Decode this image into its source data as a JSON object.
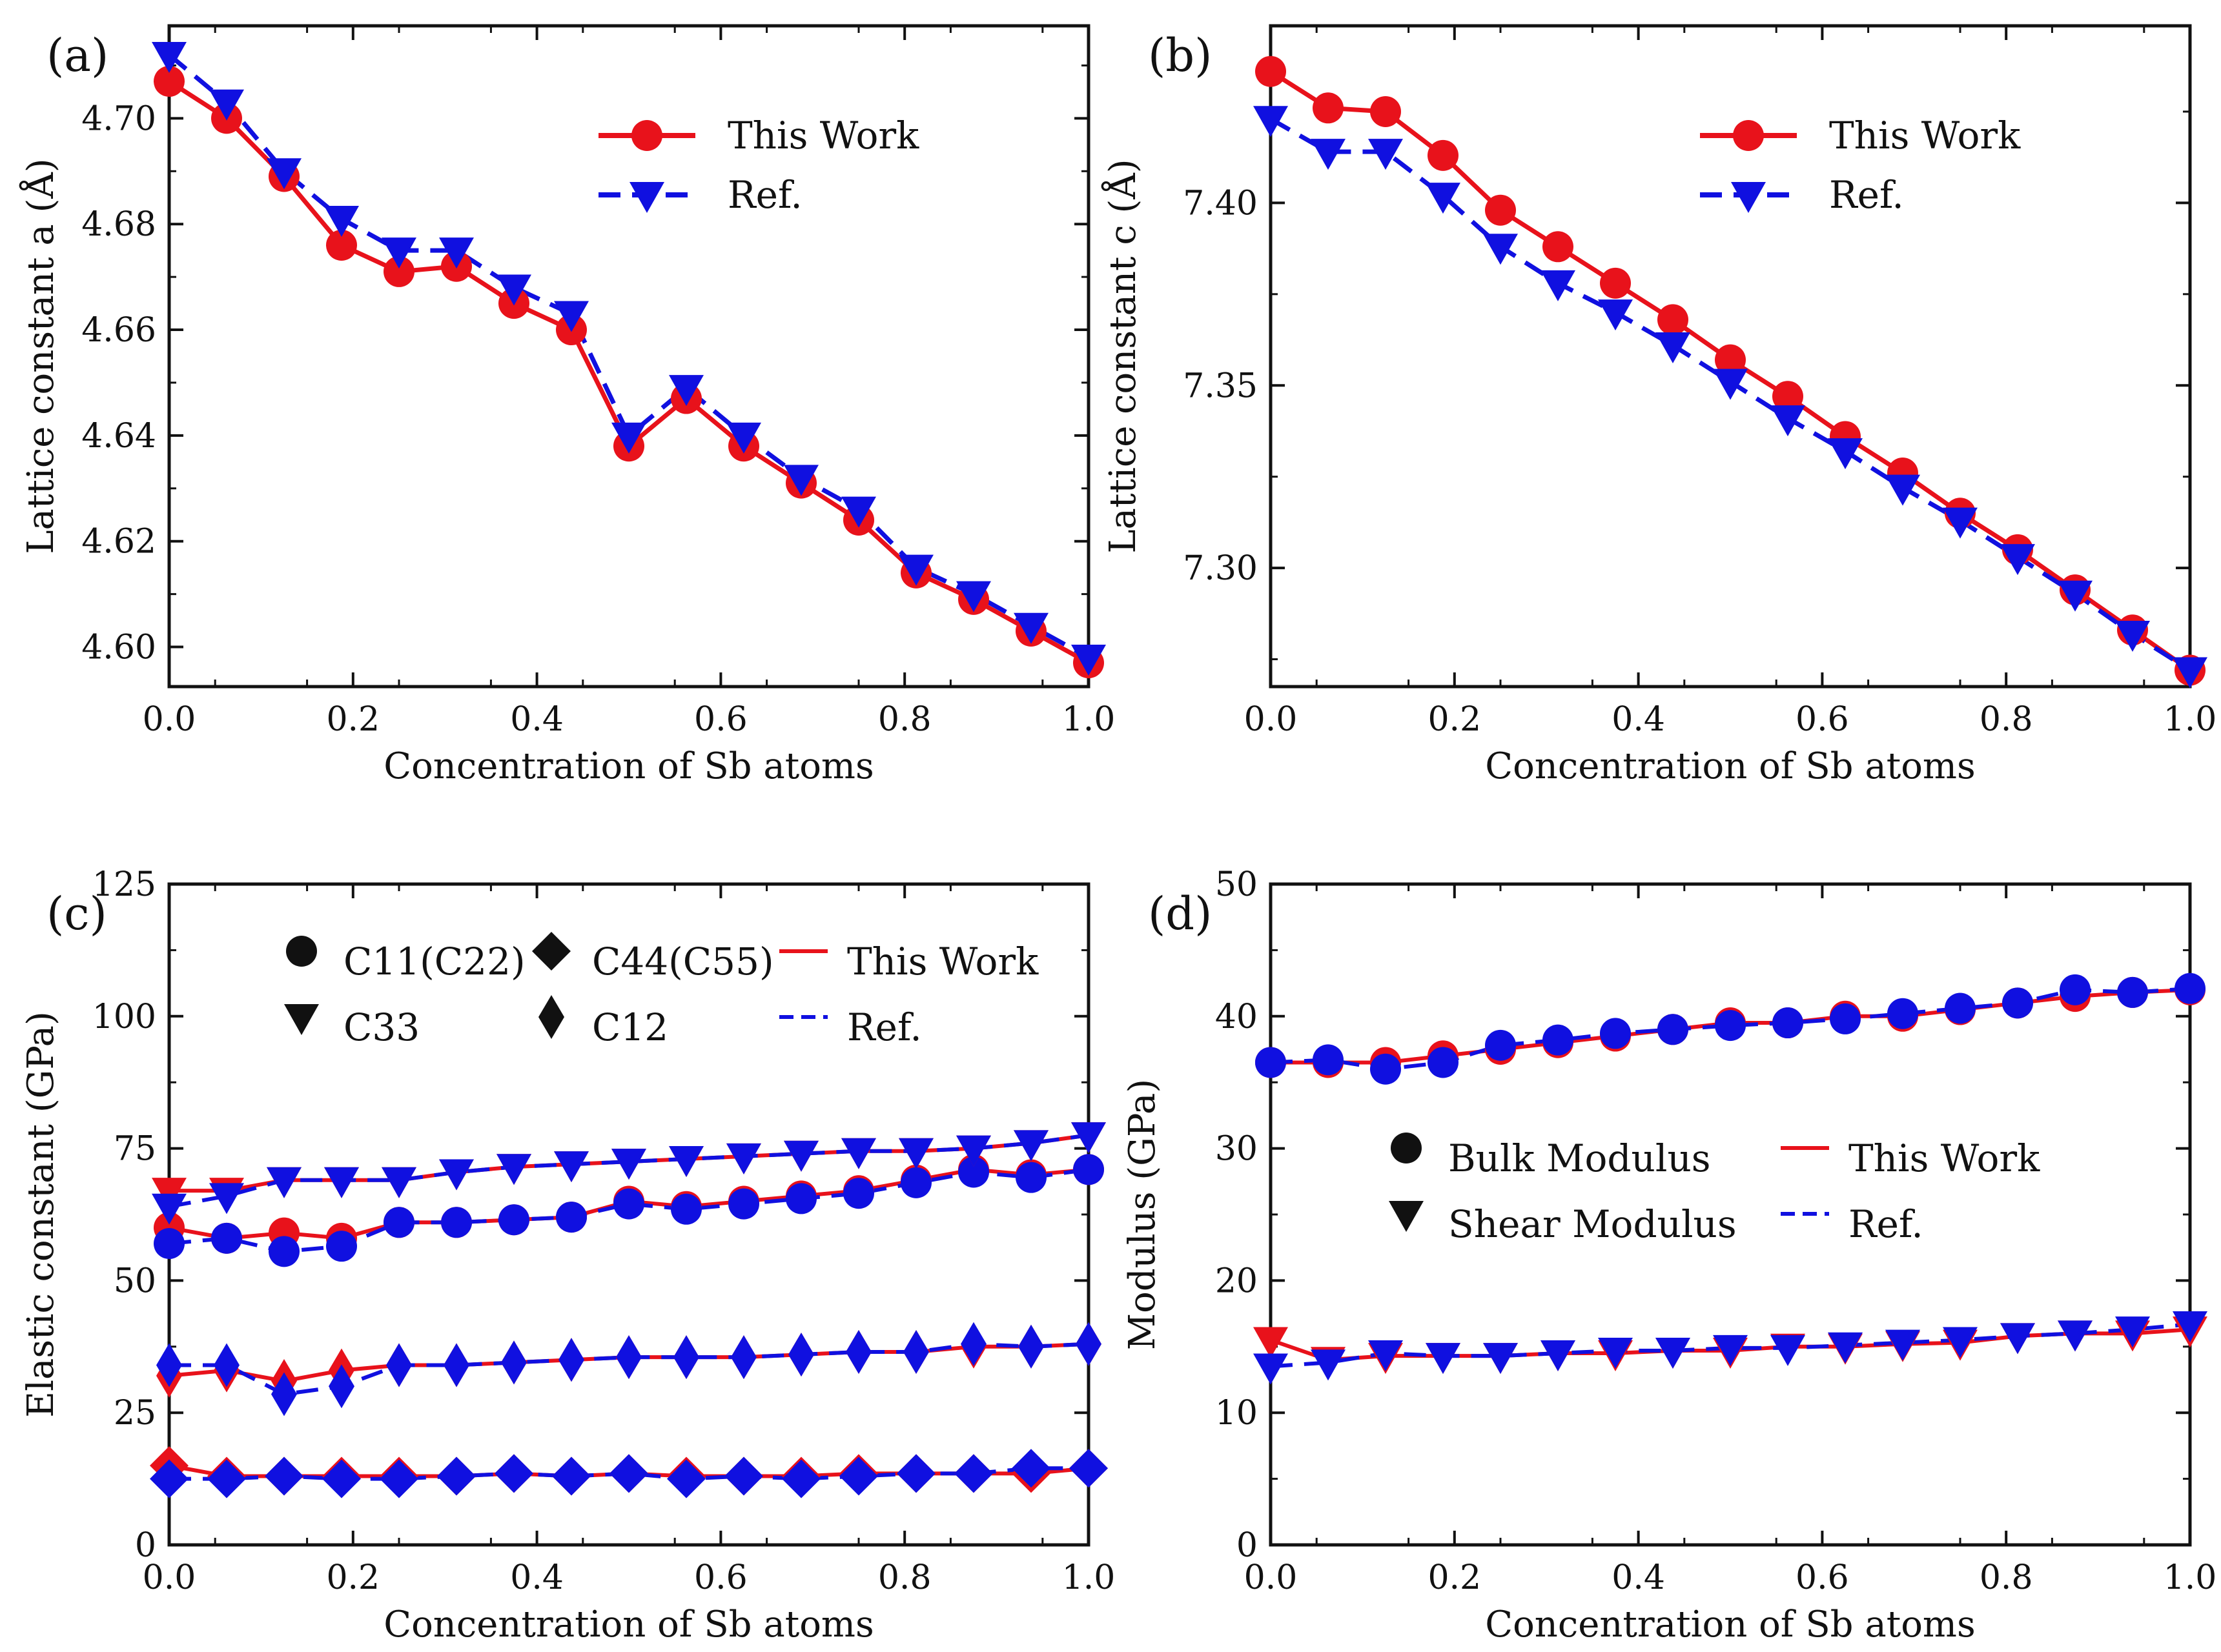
{
  "colors": {
    "this_work": "#e8121b",
    "ref": "#1010e0",
    "axis": "#111111",
    "marker_black": "#111111"
  },
  "legend_labels": {
    "this_work": "This Work",
    "ref": "Ref."
  },
  "chart_data": [
    {
      "panel_label": "(a)",
      "type": "line",
      "xlabel": "Concentration of Sb atoms",
      "ylabel": "Lattice constant a (Å)",
      "xlim": [
        0,
        1
      ],
      "ylim": [
        4.5925,
        4.7175
      ],
      "xticks": [
        "0.0",
        "0.2",
        "0.4",
        "0.6",
        "0.8",
        "1.0"
      ],
      "yticks": [
        "4.60",
        "4.62",
        "4.64",
        "4.66",
        "4.68",
        "4.70"
      ],
      "ytick_values": [
        4.6,
        4.62,
        4.64,
        4.66,
        4.68,
        4.7
      ],
      "legend": {
        "position": "upper-right",
        "entries": [
          {
            "label": "This Work",
            "style": "this_work",
            "marker": "circle"
          },
          {
            "label": "Ref.",
            "style": "ref",
            "marker": "triangle-down"
          }
        ]
      },
      "x": [
        0,
        0.0625,
        0.125,
        0.1875,
        0.25,
        0.3125,
        0.375,
        0.4375,
        0.5,
        0.5625,
        0.625,
        0.6875,
        0.75,
        0.8125,
        0.875,
        0.9375,
        1.0
      ],
      "series": [
        {
          "name": "This Work",
          "style": "this_work",
          "marker": "circle",
          "values": [
            4.707,
            4.7,
            4.689,
            4.676,
            4.671,
            4.672,
            4.665,
            4.66,
            4.638,
            4.647,
            4.638,
            4.631,
            4.624,
            4.614,
            4.609,
            4.603,
            4.597
          ]
        },
        {
          "name": "Ref.",
          "style": "ref",
          "marker": "triangle-down",
          "values": [
            4.712,
            4.703,
            4.69,
            4.681,
            4.675,
            4.675,
            4.668,
            4.663,
            4.64,
            4.649,
            4.64,
            4.632,
            4.626,
            4.615,
            4.61,
            4.604,
            4.598
          ]
        }
      ]
    },
    {
      "panel_label": "(b)",
      "type": "line",
      "xlabel": "Concentration of Sb atoms",
      "ylabel": "Lattice constant c (Å)",
      "xlim": [
        0,
        1
      ],
      "ylim": [
        7.2675,
        7.4485
      ],
      "xticks": [
        "0.0",
        "0.2",
        "0.4",
        "0.6",
        "0.8",
        "1.0"
      ],
      "yticks": [
        "7.30",
        "7.35",
        "7.40"
      ],
      "ytick_values": [
        7.3,
        7.35,
        7.4
      ],
      "legend": {
        "position": "upper-right",
        "entries": [
          {
            "label": "This Work",
            "style": "this_work",
            "marker": "circle"
          },
          {
            "label": "Ref.",
            "style": "ref",
            "marker": "triangle-down"
          }
        ]
      },
      "x": [
        0,
        0.0625,
        0.125,
        0.1875,
        0.25,
        0.3125,
        0.375,
        0.4375,
        0.5,
        0.5625,
        0.625,
        0.6875,
        0.75,
        0.8125,
        0.875,
        0.9375,
        1.0
      ],
      "series": [
        {
          "name": "This Work",
          "style": "this_work",
          "marker": "circle",
          "values": [
            7.436,
            7.426,
            7.425,
            7.413,
            7.398,
            7.388,
            7.378,
            7.368,
            7.357,
            7.347,
            7.336,
            7.326,
            7.315,
            7.305,
            7.294,
            7.283,
            7.272
          ]
        },
        {
          "name": "Ref.",
          "style": "ref",
          "marker": "triangle-down",
          "values": [
            7.423,
            7.414,
            7.414,
            7.402,
            7.388,
            7.378,
            7.37,
            7.361,
            7.351,
            7.341,
            7.332,
            7.322,
            7.313,
            7.303,
            7.293,
            7.282,
            7.272
          ]
        }
      ]
    },
    {
      "panel_label": "(c)",
      "type": "line",
      "xlabel": "Concentration of Sb atoms",
      "ylabel": "Elastic constant (GPa)",
      "xlim": [
        0,
        1
      ],
      "ylim": [
        0,
        125
      ],
      "xticks": [
        "0.0",
        "0.2",
        "0.4",
        "0.6",
        "0.8",
        "1.0"
      ],
      "yticks": [
        "0",
        "25",
        "50",
        "75",
        "100",
        "125"
      ],
      "ytick_values": [
        0,
        25,
        50,
        75,
        100,
        125
      ],
      "legend": {
        "position": "top",
        "entries": [
          {
            "label": "C11(C22)",
            "marker": "circle"
          },
          {
            "label": "C44(C55)",
            "marker": "diamond"
          },
          {
            "label": "This Work",
            "style": "this_work",
            "marker": "line-solid"
          },
          {
            "label": "C33",
            "marker": "triangle-down"
          },
          {
            "label": "C12",
            "marker": "thin-diamond"
          },
          {
            "label": "Ref.",
            "style": "ref",
            "marker": "line-dashed"
          }
        ]
      },
      "x": [
        0,
        0.0625,
        0.125,
        0.1875,
        0.25,
        0.3125,
        0.375,
        0.4375,
        0.5,
        0.5625,
        0.625,
        0.6875,
        0.75,
        0.8125,
        0.875,
        0.9375,
        1.0
      ],
      "series": [
        {
          "group": "C11(C22)",
          "source": "This Work",
          "marker": "circle",
          "values": [
            60,
            58,
            59,
            58,
            61,
            61,
            61.5,
            62,
            65,
            64,
            65,
            66,
            67,
            69,
            71,
            70,
            71
          ]
        },
        {
          "group": "C11(C22)",
          "source": "Ref.",
          "marker": "circle",
          "values": [
            57,
            58,
            55.5,
            56.5,
            61,
            61,
            61.5,
            62,
            64.5,
            63.5,
            64.5,
            65.5,
            66.5,
            68.5,
            70.5,
            69.5,
            71
          ]
        },
        {
          "group": "C33",
          "source": "This Work",
          "marker": "triangle-down",
          "values": [
            67,
            67,
            69,
            69,
            69,
            70.5,
            71.5,
            72,
            72.5,
            73,
            73.5,
            74,
            74.5,
            74.5,
            75,
            76,
            77.5
          ]
        },
        {
          "group": "C33",
          "source": "Ref.",
          "marker": "triangle-down",
          "values": [
            64,
            66,
            69,
            69,
            69,
            70.5,
            71.5,
            72,
            72.5,
            73,
            73.5,
            74,
            74.5,
            74.5,
            75,
            76,
            77.5
          ]
        },
        {
          "group": "C44(C55)",
          "source": "This Work",
          "marker": "diamond",
          "values": [
            15,
            13,
            13,
            13,
            13,
            13,
            13.5,
            13,
            13.5,
            13,
            13,
            13,
            13.5,
            13.5,
            13.5,
            13.5,
            14.5
          ]
        },
        {
          "group": "C44(C55)",
          "source": "Ref.",
          "marker": "diamond",
          "values": [
            12.5,
            12.5,
            13,
            12.5,
            12.5,
            13,
            13.5,
            13,
            13.5,
            12.5,
            13,
            12.5,
            13,
            13.5,
            13.5,
            14.5,
            14.5
          ]
        },
        {
          "group": "C12",
          "source": "This Work",
          "marker": "thin-diamond",
          "values": [
            32,
            33,
            31,
            33,
            34,
            34,
            34.5,
            35,
            35.5,
            35.5,
            35.5,
            36,
            36.5,
            36.5,
            37.5,
            37.5,
            38
          ]
        },
        {
          "group": "C12",
          "source": "Ref.",
          "marker": "thin-diamond",
          "values": [
            34,
            34,
            28.5,
            30,
            34,
            34,
            34.5,
            35,
            35.5,
            35.5,
            35.5,
            36,
            36.5,
            36.5,
            38,
            37.5,
            38
          ]
        }
      ]
    },
    {
      "panel_label": "(d)",
      "type": "line",
      "xlabel": "Concentration of Sb atoms",
      "ylabel": "Modulus (GPa)",
      "xlim": [
        0,
        1
      ],
      "ylim": [
        0,
        50
      ],
      "xticks": [
        "0.0",
        "0.2",
        "0.4",
        "0.6",
        "0.8",
        "1.0"
      ],
      "yticks": [
        "0",
        "10",
        "20",
        "30",
        "40",
        "50"
      ],
      "ytick_values": [
        0,
        10,
        20,
        30,
        40,
        50
      ],
      "legend": {
        "position": "center",
        "entries": [
          {
            "label": "Bulk Modulus",
            "marker": "circle"
          },
          {
            "label": "This Work",
            "style": "this_work",
            "marker": "line-solid"
          },
          {
            "label": "Shear Modulus",
            "marker": "triangle-down"
          },
          {
            "label": "Ref.",
            "style": "ref",
            "marker": "line-dashed"
          }
        ]
      },
      "x": [
        0,
        0.0625,
        0.125,
        0.1875,
        0.25,
        0.3125,
        0.375,
        0.4375,
        0.5,
        0.5625,
        0.625,
        0.6875,
        0.75,
        0.8125,
        0.875,
        0.9375,
        1.0
      ],
      "series": [
        {
          "group": "Bulk Modulus",
          "source": "This Work",
          "marker": "circle",
          "values": [
            36.5,
            36.5,
            36.5,
            37,
            37.5,
            38,
            38.5,
            39,
            39.5,
            39.5,
            40,
            40,
            40.5,
            41,
            41.5,
            41.8,
            42
          ]
        },
        {
          "group": "Bulk Modulus",
          "source": "Ref.",
          "marker": "circle",
          "values": [
            36.5,
            36.7,
            36,
            36.5,
            37.8,
            38.2,
            38.7,
            39,
            39.3,
            39.5,
            39.8,
            40.2,
            40.6,
            41,
            42,
            41.8,
            42.1
          ]
        },
        {
          "group": "Shear Modulus",
          "source": "This Work",
          "marker": "triangle-down",
          "values": [
            15.5,
            14,
            14.3,
            14.3,
            14.3,
            14.5,
            14.5,
            14.7,
            14.7,
            15,
            15,
            15.2,
            15.3,
            15.8,
            16,
            16,
            16.3
          ]
        },
        {
          "group": "Shear Modulus",
          "source": "Ref.",
          "marker": "triangle-down",
          "values": [
            13.5,
            13.8,
            14.5,
            14.3,
            14.3,
            14.5,
            14.7,
            14.7,
            14.9,
            14.9,
            15.1,
            15.3,
            15.5,
            15.8,
            16,
            16.3,
            16.7
          ]
        }
      ]
    }
  ]
}
